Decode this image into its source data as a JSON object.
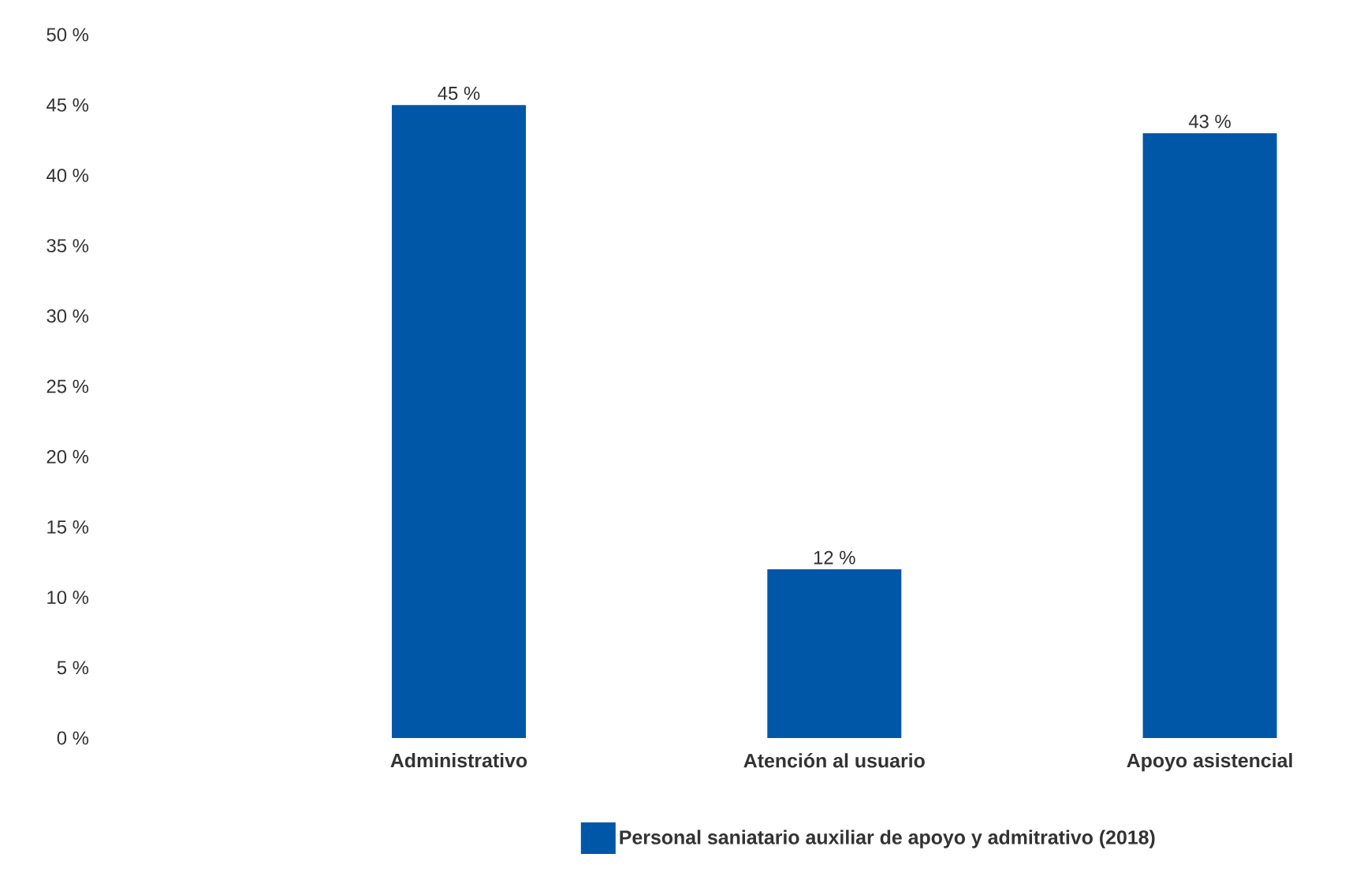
{
  "chart_data": {
    "type": "bar",
    "categories": [
      "Administrativo",
      "Atención al usuario",
      "Apoyo asistencial"
    ],
    "series": [
      {
        "name": "Personal saniatario auxiliar de apoyo y admitrativo (2018)",
        "color": "#0057a8",
        "values": [
          45,
          12,
          43
        ],
        "value_labels": [
          "45 %",
          "12 %",
          "43 %"
        ]
      }
    ],
    "ylim": [
      0,
      50
    ],
    "yticks": [
      {
        "value": 0,
        "label": "0 %"
      },
      {
        "value": 5,
        "label": "5 %"
      },
      {
        "value": 10,
        "label": "10 %"
      },
      {
        "value": 15,
        "label": "15 %"
      },
      {
        "value": 20,
        "label": "20 %"
      },
      {
        "value": 25,
        "label": "25 %"
      },
      {
        "value": 30,
        "label": "30 %"
      },
      {
        "value": 35,
        "label": "35 %"
      },
      {
        "value": 40,
        "label": "40 %"
      },
      {
        "value": 45,
        "label": "45 %"
      },
      {
        "value": 50,
        "label": "50 %"
      }
    ],
    "grid": false,
    "legend": "bottom"
  }
}
